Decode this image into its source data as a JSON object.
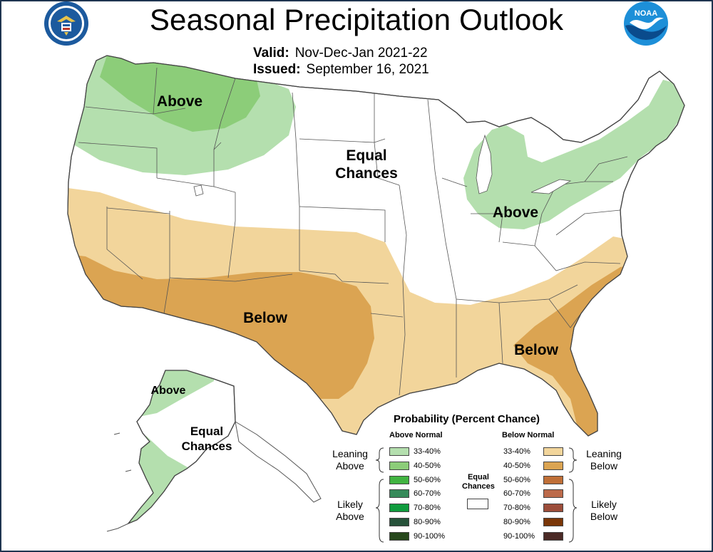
{
  "header": {
    "title": "Seasonal Precipitation Outlook",
    "valid_label": "Valid:",
    "valid_value": "Nov-Dec-Jan 2021-22",
    "issued_label": "Issued:",
    "issued_value": "September 16, 2021",
    "noaa_logo_text": "NOAA"
  },
  "map": {
    "labels": {
      "above_nw": "Above",
      "equal_top": "Equal",
      "equal_bottom": "Chances",
      "above_gl": "Above",
      "below_sw": "Below",
      "below_se": "Below",
      "above_ak": "Above",
      "equal_ak_top": "Equal",
      "equal_ak_bottom": "Chances"
    },
    "colors": {
      "land": "#ffffff",
      "above_33_40": "#b4dfae",
      "above_40_50": "#8ccd79",
      "below_33_40": "#f2d59b",
      "below_40_50": "#dba452",
      "border": "#555555"
    }
  },
  "legend": {
    "title": "Probability (Percent Chance)",
    "above_header": "Above Normal",
    "below_header": "Below Normal",
    "equal_label_1": "Equal",
    "equal_label_2": "Chances",
    "leaning_above_1": "Leaning",
    "leaning_above_2": "Above",
    "likely_above_1": "Likely",
    "likely_above_2": "Above",
    "leaning_below_1": "Leaning",
    "leaning_below_2": "Below",
    "likely_below_1": "Likely",
    "likely_below_2": "Below",
    "above": [
      {
        "label": "33-40%",
        "color": "#b4dfae"
      },
      {
        "label": "40-50%",
        "color": "#8ccd79"
      },
      {
        "label": "50-60%",
        "color": "#41b341"
      },
      {
        "label": "60-70%",
        "color": "#358a59"
      },
      {
        "label": "70-80%",
        "color": "#0f9b3d"
      },
      {
        "label": "80-90%",
        "color": "#26523a"
      },
      {
        "label": "90-100%",
        "color": "#27481c"
      }
    ],
    "below": [
      {
        "label": "33-40%",
        "color": "#f2d59b"
      },
      {
        "label": "40-50%",
        "color": "#dba452"
      },
      {
        "label": "50-60%",
        "color": "#bf6f37"
      },
      {
        "label": "60-70%",
        "color": "#bc6a4a"
      },
      {
        "label": "70-80%",
        "color": "#9c4d3a"
      },
      {
        "label": "80-90%",
        "color": "#7a3608"
      },
      {
        "label": "90-100%",
        "color": "#4b2a26"
      }
    ]
  }
}
